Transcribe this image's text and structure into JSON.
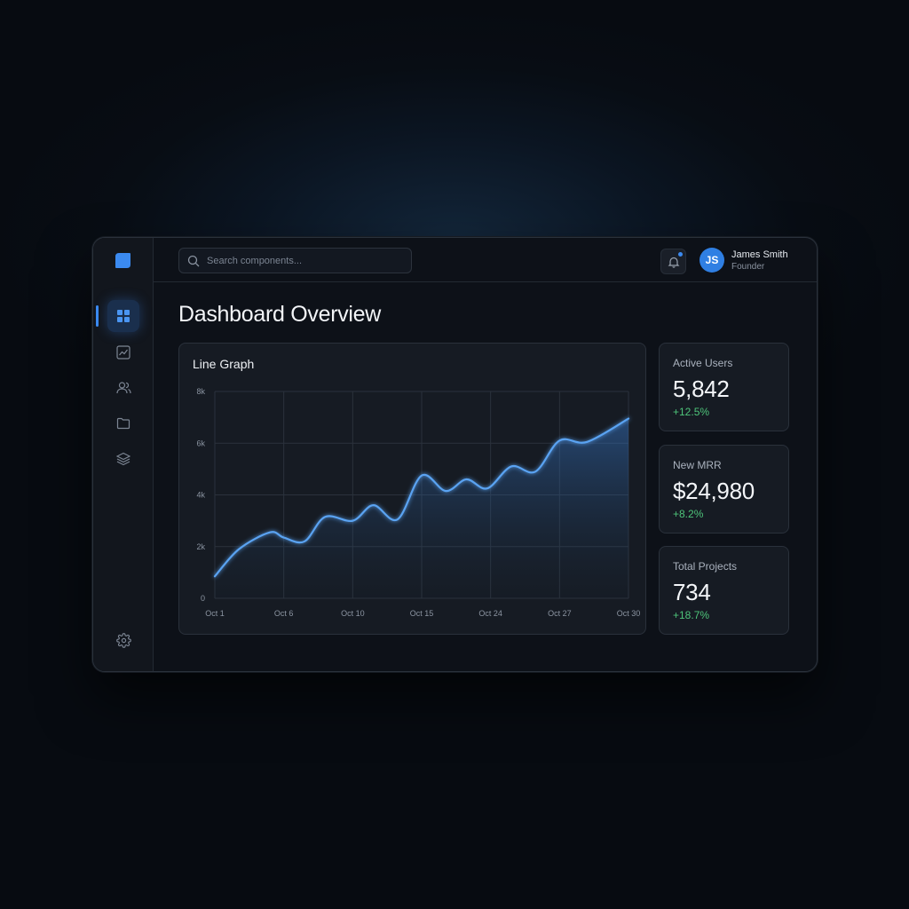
{
  "app": {
    "accent_color": "#3b8af0",
    "logo_icon": "app-logo-icon"
  },
  "sidebar": {
    "items": [
      {
        "icon": "dashboard-icon",
        "active": true
      },
      {
        "icon": "analytics-icon",
        "active": false
      },
      {
        "icon": "users-icon",
        "active": false
      },
      {
        "icon": "folder-icon",
        "active": false
      },
      {
        "icon": "layers-icon",
        "active": false
      }
    ],
    "footer_icon": "settings-icon"
  },
  "topbar": {
    "search_placeholder": "Search components...",
    "notification_icon": "bell-icon",
    "notification_unread": true,
    "user": {
      "initials": "JS",
      "name": "James Smith",
      "role": "Founder"
    }
  },
  "main": {
    "title": "Dashboard Overview",
    "stats": [
      {
        "label": "Active Users",
        "value": "5,842",
        "delta": "+12.5%"
      },
      {
        "label": "New MRR",
        "value": "$24,980",
        "delta": "+8.2%"
      },
      {
        "label": "Total Projects",
        "value": "734",
        "delta": "+18.7%"
      }
    ]
  },
  "chart_data": {
    "type": "line",
    "title": "Line Graph",
    "xlabel": "",
    "ylabel": "",
    "categories": [
      "Oct 1",
      "Oct 6",
      "Oct 10",
      "Oct 15",
      "Oct 24",
      "Oct 27",
      "Oct 30"
    ],
    "y_ticks": [
      "0",
      "2k",
      "4k",
      "6k",
      "8k"
    ],
    "ylim": [
      0,
      8000
    ],
    "grid": true,
    "fill": true,
    "series": [
      {
        "color": "#5aa3f2",
        "points": [
          [
            0,
            850
          ],
          [
            0.35,
            1900
          ],
          [
            0.8,
            2550
          ],
          [
            1.0,
            2350
          ],
          [
            1.3,
            2200
          ],
          [
            1.6,
            3150
          ],
          [
            2.0,
            3000
          ],
          [
            2.3,
            3600
          ],
          [
            2.65,
            3050
          ],
          [
            3.0,
            4750
          ],
          [
            3.35,
            4150
          ],
          [
            3.65,
            4600
          ],
          [
            3.95,
            4250
          ],
          [
            4.3,
            5100
          ],
          [
            4.65,
            4900
          ],
          [
            5.0,
            6100
          ],
          [
            5.4,
            6050
          ],
          [
            6.0,
            6950
          ]
        ]
      }
    ]
  }
}
